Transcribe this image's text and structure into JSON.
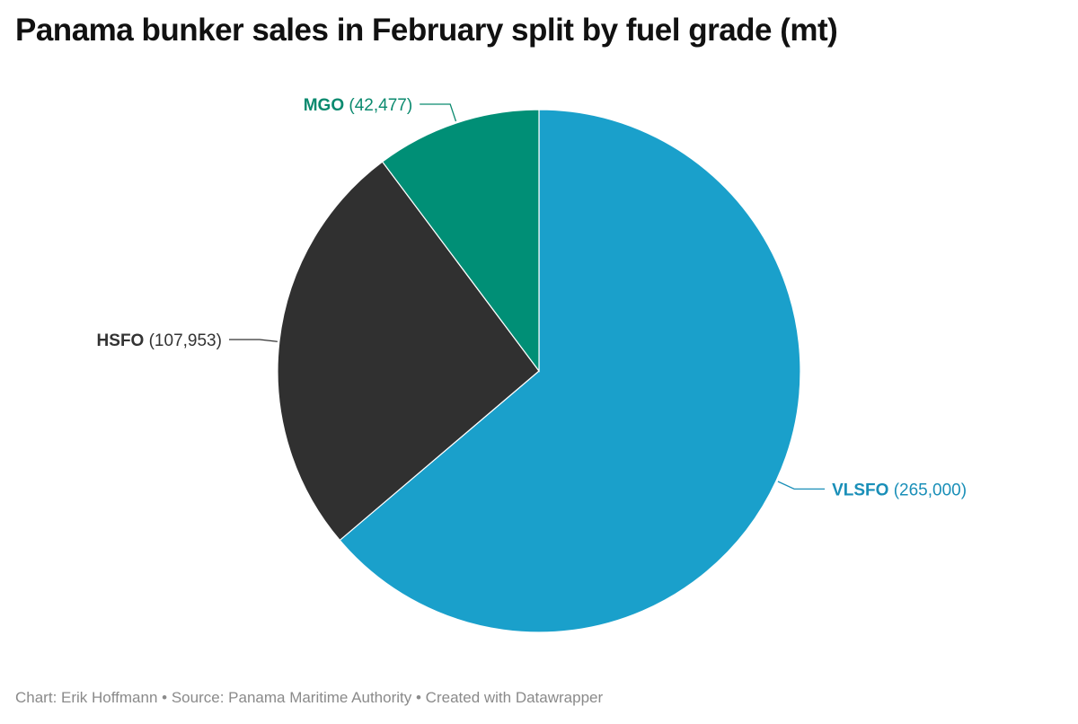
{
  "title": "Panama bunker sales in February split by fuel grade (mt)",
  "footer": {
    "byline": "Chart: Erik Hoffmann",
    "sep1": "•",
    "source": "Source: Panama Maritime Authority",
    "sep2": "•",
    "credit": "Created with Datawrapper"
  },
  "chart_data": {
    "type": "pie",
    "title": "Panama bunker sales in February split by fuel grade (mt)",
    "start_angle": "12 o'clock",
    "direction": "clockwise",
    "slices": [
      {
        "label": "VLSFO",
        "value": 265000,
        "display_value": "(265,000)",
        "color": "#1aa0cb",
        "label_color": "#1a8fb8"
      },
      {
        "label": "HSFO",
        "value": 107953,
        "display_value": "(107,953)",
        "color": "#303030",
        "label_color": "#333333"
      },
      {
        "label": "MGO",
        "value": 42477,
        "display_value": "(42,477)",
        "color": "#008f76",
        "label_color": "#0b8a6f"
      }
    ]
  }
}
